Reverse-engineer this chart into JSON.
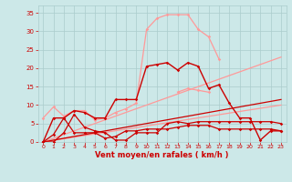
{
  "x": [
    0,
    1,
    2,
    3,
    4,
    5,
    6,
    7,
    8,
    9,
    10,
    11,
    12,
    13,
    14,
    15,
    16,
    17,
    18,
    19,
    20,
    21,
    22,
    23
  ],
  "series": [
    {
      "color": "#ff9999",
      "lw": 0.9,
      "marker": "D",
      "ms": 1.8,
      "y": [
        6.5,
        9.5,
        7.0,
        8.5,
        8.5,
        6.0,
        6.5,
        8.0,
        9.0,
        10.5,
        30.5,
        33.5,
        34.5,
        34.5,
        34.5,
        30.5,
        28.5,
        22.5,
        null,
        null,
        null,
        null,
        null,
        null
      ]
    },
    {
      "color": "#ff9999",
      "lw": 0.9,
      "marker": "D",
      "ms": 1.8,
      "y": [
        null,
        null,
        null,
        null,
        null,
        null,
        null,
        null,
        null,
        null,
        null,
        null,
        null,
        13.5,
        14.5,
        14.0,
        13.5,
        null,
        null,
        null,
        null,
        null,
        null,
        null
      ]
    },
    {
      "color": "#ff9999",
      "lw": 0.9,
      "marker": null,
      "ms": 0,
      "y": [
        0.0,
        1.0,
        2.0,
        3.0,
        4.0,
        5.0,
        6.0,
        7.0,
        8.0,
        9.0,
        10.0,
        11.0,
        12.0,
        13.0,
        14.0,
        15.0,
        16.0,
        17.0,
        18.0,
        19.0,
        20.0,
        21.0,
        22.0,
        23.0
      ]
    },
    {
      "color": "#ff9999",
      "lw": 0.9,
      "marker": null,
      "ms": 0,
      "y": [
        0.0,
        0.43,
        0.87,
        1.3,
        1.74,
        2.17,
        2.6,
        3.04,
        3.47,
        3.9,
        4.35,
        4.78,
        5.22,
        5.65,
        6.09,
        6.52,
        6.96,
        7.39,
        7.83,
        8.26,
        8.7,
        9.13,
        9.57,
        10.0
      ]
    },
    {
      "color": "#cc0000",
      "lw": 1.0,
      "marker": "D",
      "ms": 1.8,
      "y": [
        0.0,
        6.5,
        6.5,
        8.5,
        8.0,
        6.5,
        6.5,
        11.5,
        11.5,
        11.5,
        20.5,
        21.0,
        21.5,
        19.5,
        21.5,
        20.5,
        14.5,
        15.5,
        10.5,
        6.5,
        6.5,
        0.5,
        3.0,
        3.0
      ]
    },
    {
      "color": "#cc0000",
      "lw": 0.9,
      "marker": "D",
      "ms": 1.8,
      "y": [
        0.0,
        2.0,
        6.5,
        2.5,
        2.5,
        2.5,
        1.0,
        1.5,
        3.0,
        3.0,
        3.5,
        3.5,
        3.5,
        4.0,
        4.5,
        4.5,
        4.5,
        3.5,
        3.5,
        3.5,
        3.5,
        3.5,
        3.5,
        3.0
      ]
    },
    {
      "color": "#cc0000",
      "lw": 0.9,
      "marker": "D",
      "ms": 1.8,
      "y": [
        0.0,
        0.0,
        2.5,
        7.5,
        4.0,
        3.0,
        2.5,
        0.5,
        0.5,
        2.5,
        2.5,
        2.5,
        5.0,
        5.5,
        5.0,
        5.5,
        5.5,
        5.5,
        5.5,
        5.5,
        5.5,
        5.5,
        5.5,
        5.0
      ]
    },
    {
      "color": "#cc0000",
      "lw": 0.9,
      "marker": null,
      "ms": 0,
      "y": [
        0.0,
        0.5,
        1.0,
        1.5,
        2.0,
        2.5,
        3.0,
        3.5,
        4.0,
        4.5,
        5.0,
        5.5,
        6.0,
        6.5,
        7.0,
        7.5,
        8.0,
        8.5,
        9.0,
        9.5,
        10.0,
        10.5,
        11.0,
        11.5
      ]
    }
  ],
  "xlabel": "Vent moyen/en rafales ( km/h )",
  "xlim": [
    -0.5,
    23.5
  ],
  "ylim": [
    0,
    37
  ],
  "yticks": [
    0,
    5,
    10,
    15,
    20,
    25,
    30,
    35
  ],
  "xticks": [
    0,
    1,
    2,
    3,
    4,
    5,
    6,
    7,
    8,
    9,
    10,
    11,
    12,
    13,
    14,
    15,
    16,
    17,
    18,
    19,
    20,
    21,
    22,
    23
  ],
  "bg_color": "#cce8e8",
  "grid_color": "#aacccc",
  "tick_color": "#cc0000",
  "label_color": "#cc0000"
}
